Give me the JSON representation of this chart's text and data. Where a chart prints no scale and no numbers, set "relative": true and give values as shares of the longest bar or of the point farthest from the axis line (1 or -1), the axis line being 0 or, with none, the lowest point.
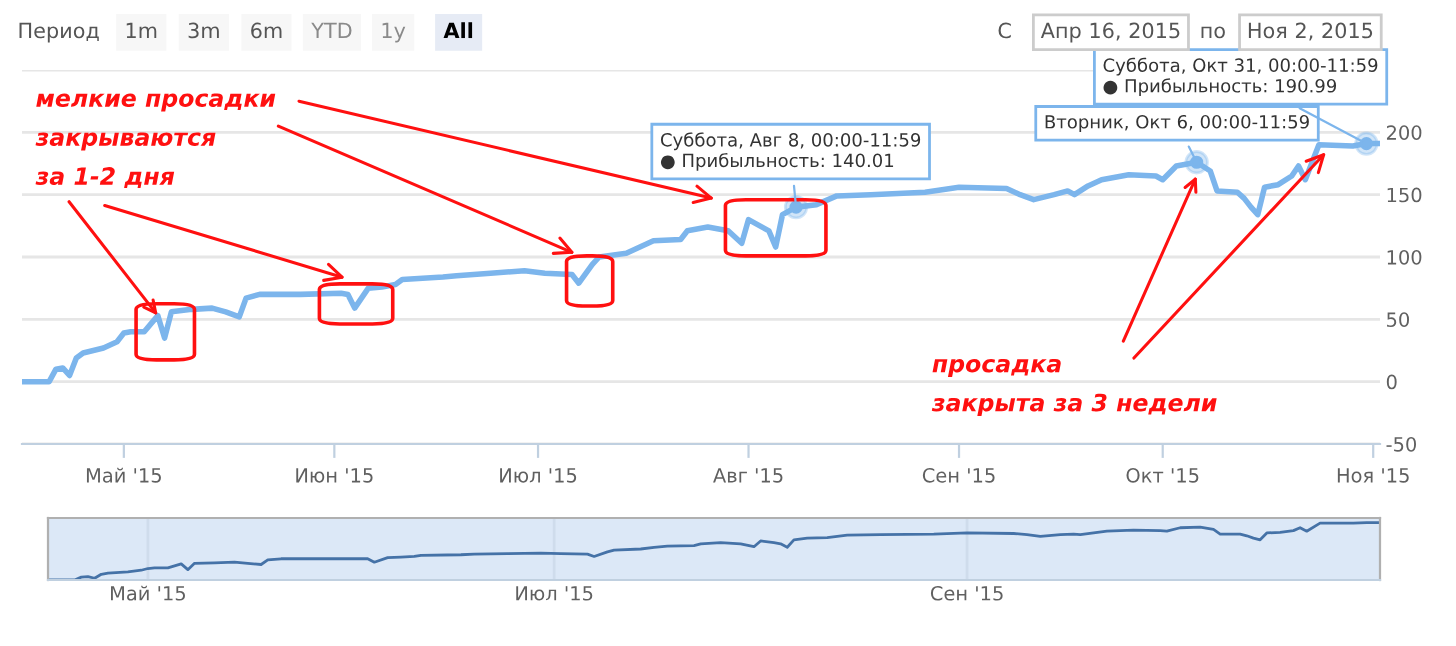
{
  "chart_data": [
    {
      "type": "line",
      "x": [
        "2015-04-16",
        "2015-04-20",
        "2015-04-21",
        "2015-04-22",
        "2015-04-23",
        "2015-04-24",
        "2015-04-25",
        "2015-04-28",
        "2015-04-30",
        "2015-05-01",
        "2015-05-02",
        "2015-05-04",
        "2015-05-06",
        "2015-05-07",
        "2015-05-08",
        "2015-05-11",
        "2015-05-14",
        "2015-05-16",
        "2015-05-18",
        "2015-05-19",
        "2015-05-21",
        "2015-05-27",
        "2015-06-02",
        "2015-06-03",
        "2015-06-04",
        "2015-06-06",
        "2015-06-08",
        "2015-06-10",
        "2015-06-11",
        "2015-06-17",
        "2015-06-19",
        "2015-06-24",
        "2015-06-29",
        "2015-07-02",
        "2015-07-06",
        "2015-07-07",
        "2015-07-09",
        "2015-07-10",
        "2015-07-14",
        "2015-07-16",
        "2015-07-18",
        "2015-07-22",
        "2015-07-23",
        "2015-07-26",
        "2015-07-29",
        "2015-07-31",
        "2015-08-01",
        "2015-08-03",
        "2015-08-04",
        "2015-08-05",
        "2015-08-06",
        "2015-08-08",
        "2015-08-11",
        "2015-08-14",
        "2015-08-19",
        "2015-08-27",
        "2015-09-01",
        "2015-09-08",
        "2015-09-10",
        "2015-09-12",
        "2015-09-15",
        "2015-09-17",
        "2015-09-18",
        "2015-09-20",
        "2015-09-22",
        "2015-09-26",
        "2015-09-30",
        "2015-10-01",
        "2015-10-03",
        "2015-10-06",
        "2015-10-08",
        "2015-10-09",
        "2015-10-12",
        "2015-10-13",
        "2015-10-14",
        "2015-10-15",
        "2015-10-16",
        "2015-10-18",
        "2015-10-20",
        "2015-10-21",
        "2015-10-22",
        "2015-10-24",
        "2015-10-29",
        "2015-10-31",
        "2015-11-02"
      ],
      "series": [
        {
          "color": "#7cb5ec",
          "values": [
            0,
            0,
            10,
            11,
            5,
            19,
            23,
            27,
            32,
            39,
            40,
            40,
            53,
            35,
            56,
            58,
            59,
            56,
            52,
            67,
            70,
            70,
            71,
            70,
            59,
            75,
            76,
            78,
            82,
            84,
            85,
            87,
            89,
            87,
            86,
            79,
            94,
            100,
            103,
            108,
            113,
            114,
            121,
            124,
            121,
            111,
            130,
            124,
            121,
            108,
            134,
            140.01,
            142,
            149,
            150,
            152,
            156,
            155,
            150,
            146,
            150,
            153,
            150,
            157,
            162,
            166,
            165,
            162,
            173,
            176,
            169,
            153,
            152,
            147,
            140,
            134,
            156,
            158,
            165,
            173,
            162,
            190,
            189,
            190.99,
            191
          ]
        }
      ],
      "xlim": [
        "2015-04-16",
        "2015-11-02"
      ],
      "xticks": [
        {
          "value": "2015-05-01",
          "label": "Май '15"
        },
        {
          "value": "2015-06-01",
          "label": "Июн '15"
        },
        {
          "value": "2015-07-01",
          "label": "Июл '15"
        },
        {
          "value": "2015-08-01",
          "label": "Авг '15"
        },
        {
          "value": "2015-09-01",
          "label": "Сен '15"
        },
        {
          "value": "2015-10-01",
          "label": "Окт '15"
        },
        {
          "value": "2015-11-01",
          "label": "Ноя '15"
        }
      ],
      "ylim": [
        -50,
        250
      ],
      "yticks": [
        -50,
        0,
        50,
        100,
        150,
        200,
        {
          "value": 250,
          "label": null
        }
      ],
      "grid": "y",
      "annotations": [
        "Период",
        "1m",
        "3m",
        "6m",
        "YTD",
        "1y",
        "All",
        "С",
        "Апр 16, 2015",
        "по",
        "Ноя 2, 2015",
        {
          "text": "мелкие просадки\nзакрываются\nза 1-2 дня",
          "x": "2015-05-06",
          "y": 53
        },
        {
          "text": "просадка\nзакрыта за 3 недели",
          "x": "2015-10-06",
          "y": 165
        },
        {
          "text": "Суббота, Авг 8, 00:00-11:59\n● Прибыльность: 140.01",
          "x": "2015-08-08",
          "y": 140.01
        },
        {
          "text": "Вторник, Окт 6, 00:00-11:59",
          "x": "2015-10-06",
          "y": 176
        },
        {
          "text": "Суббота, Окт 31, 00:00-11:59\n● Прибыльность: 190.99",
          "x": "2015-10-31",
          "y": 190.99
        }
      ]
    },
    {
      "type": "line",
      "x": [
        "2015-04-16",
        "2015-04-20",
        "2015-04-21",
        "2015-04-22",
        "2015-04-23",
        "2015-04-24",
        "2015-04-25",
        "2015-04-28",
        "2015-04-30",
        "2015-05-01",
        "2015-05-02",
        "2015-05-04",
        "2015-05-06",
        "2015-05-07",
        "2015-05-08",
        "2015-05-11",
        "2015-05-14",
        "2015-05-16",
        "2015-05-18",
        "2015-05-19",
        "2015-05-21",
        "2015-05-27",
        "2015-06-02",
        "2015-06-03",
        "2015-06-04",
        "2015-06-06",
        "2015-06-08",
        "2015-06-10",
        "2015-06-11",
        "2015-06-17",
        "2015-06-19",
        "2015-06-24",
        "2015-06-29",
        "2015-07-02",
        "2015-07-06",
        "2015-07-07",
        "2015-07-09",
        "2015-07-10",
        "2015-07-14",
        "2015-07-16",
        "2015-07-18",
        "2015-07-22",
        "2015-07-23",
        "2015-07-26",
        "2015-07-29",
        "2015-07-31",
        "2015-08-01",
        "2015-08-03",
        "2015-08-04",
        "2015-08-05",
        "2015-08-06",
        "2015-08-08",
        "2015-08-11",
        "2015-08-14",
        "2015-08-19",
        "2015-08-27",
        "2015-09-01",
        "2015-09-08",
        "2015-09-10",
        "2015-09-12",
        "2015-09-15",
        "2015-09-17",
        "2015-09-18",
        "2015-09-20",
        "2015-09-22",
        "2015-09-26",
        "2015-09-30",
        "2015-10-01",
        "2015-10-03",
        "2015-10-06",
        "2015-10-08",
        "2015-10-09",
        "2015-10-12",
        "2015-10-13",
        "2015-10-14",
        "2015-10-15",
        "2015-10-16",
        "2015-10-18",
        "2015-10-20",
        "2015-10-21",
        "2015-10-22",
        "2015-10-24",
        "2015-10-29",
        "2015-10-31",
        "2015-11-02"
      ],
      "series": [
        {
          "color": "#4572a7",
          "values": [
            0,
            0,
            0.05,
            0.06,
            0.03,
            0.1,
            0.12,
            0.14,
            0.17,
            0.2,
            0.21,
            0.21,
            0.28,
            0.18,
            0.29,
            0.3,
            0.31,
            0.29,
            0.27,
            0.35,
            0.37,
            0.37,
            0.37,
            0.37,
            0.31,
            0.39,
            0.4,
            0.41,
            0.43,
            0.44,
            0.45,
            0.46,
            0.47,
            0.46,
            0.45,
            0.41,
            0.49,
            0.52,
            0.54,
            0.57,
            0.59,
            0.6,
            0.63,
            0.65,
            0.63,
            0.58,
            0.68,
            0.65,
            0.63,
            0.57,
            0.7,
            0.73,
            0.74,
            0.78,
            0.79,
            0.8,
            0.82,
            0.81,
            0.79,
            0.76,
            0.79,
            0.8,
            0.79,
            0.82,
            0.85,
            0.87,
            0.86,
            0.85,
            0.91,
            0.92,
            0.88,
            0.8,
            0.8,
            0.77,
            0.73,
            0.7,
            0.82,
            0.83,
            0.86,
            0.91,
            0.85,
            0.99,
            0.99,
            1.0,
            1.0
          ]
        }
      ],
      "relative": true,
      "xlim": [
        "2015-04-16",
        "2015-11-02"
      ],
      "xticks": [
        {
          "value": "2015-05-01",
          "label": "Май '15"
        },
        {
          "value": "2015-07-01",
          "label": "Июл '15"
        },
        {
          "value": "2015-09-01",
          "label": "Сен '15"
        }
      ],
      "grid": "x",
      "bands": [
        {
          "axis": "x",
          "from": "2015-04-16",
          "to": "2015-11-02",
          "color": "#dce8f7"
        }
      ]
    }
  ]
}
